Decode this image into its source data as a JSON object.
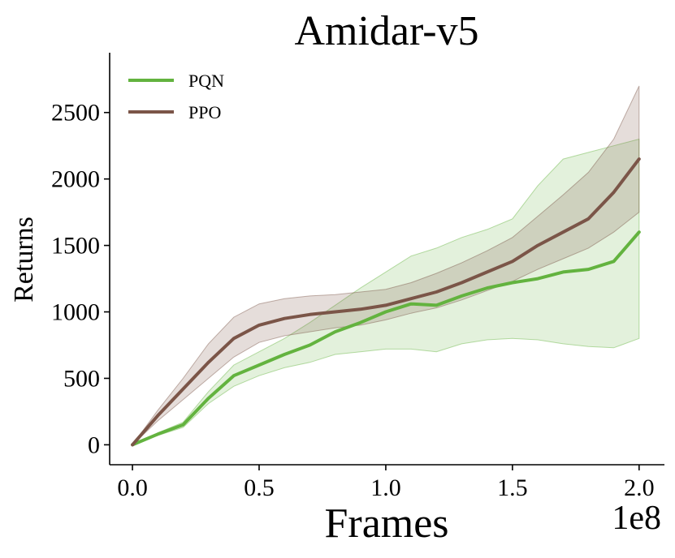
{
  "colors": {
    "pqn": "#63b33f",
    "ppo": "#7b5548"
  },
  "chart_data": {
    "type": "line",
    "title": "Amidar-v5",
    "xlabel": "Frames",
    "ylabel": "Returns",
    "x_multiplier_label": "1e8",
    "xlim": [
      -0.09,
      2.1
    ],
    "ylim": [
      -150,
      2950
    ],
    "xticks": [
      0.0,
      0.5,
      1.0,
      1.5,
      2.0
    ],
    "xtick_labels": [
      "0.0",
      "0.5",
      "1.0",
      "1.5",
      "2.0"
    ],
    "yticks": [
      0,
      500,
      1000,
      1500,
      2000,
      2500
    ],
    "ytick_labels": [
      "0",
      "500",
      "1000",
      "1500",
      "2000",
      "2500"
    ],
    "grid": false,
    "legend_position": "top-left",
    "series": [
      {
        "name": "PQN",
        "color": "#63b33f",
        "x": [
          0.0,
          0.1,
          0.2,
          0.3,
          0.4,
          0.5,
          0.6,
          0.7,
          0.8,
          0.9,
          1.0,
          1.1,
          1.2,
          1.3,
          1.4,
          1.5,
          1.6,
          1.7,
          1.8,
          1.9,
          2.0
        ],
        "mean": [
          0,
          80,
          150,
          350,
          520,
          600,
          680,
          750,
          850,
          920,
          1000,
          1060,
          1050,
          1120,
          1180,
          1220,
          1250,
          1300,
          1320,
          1380,
          1600
        ],
        "lower": [
          0,
          70,
          130,
          310,
          440,
          520,
          580,
          620,
          680,
          700,
          720,
          720,
          700,
          760,
          790,
          800,
          790,
          760,
          740,
          730,
          800
        ],
        "upper": [
          0,
          90,
          170,
          400,
          600,
          700,
          800,
          920,
          1050,
          1180,
          1300,
          1420,
          1480,
          1560,
          1620,
          1700,
          1950,
          2150,
          2200,
          2250,
          2300
        ]
      },
      {
        "name": "PPO",
        "color": "#7b5548",
        "x": [
          0.0,
          0.1,
          0.2,
          0.3,
          0.4,
          0.5,
          0.6,
          0.7,
          0.8,
          0.9,
          1.0,
          1.1,
          1.2,
          1.3,
          1.4,
          1.5,
          1.6,
          1.7,
          1.8,
          1.9,
          2.0
        ],
        "mean": [
          0,
          220,
          420,
          620,
          800,
          900,
          950,
          980,
          1000,
          1020,
          1050,
          1100,
          1150,
          1220,
          1300,
          1380,
          1500,
          1600,
          1700,
          1900,
          2150
        ],
        "lower": [
          0,
          180,
          340,
          500,
          660,
          770,
          820,
          850,
          880,
          900,
          940,
          990,
          1030,
          1090,
          1160,
          1230,
          1320,
          1400,
          1480,
          1600,
          1750
        ],
        "upper": [
          0,
          260,
          500,
          760,
          960,
          1060,
          1100,
          1120,
          1130,
          1150,
          1170,
          1220,
          1290,
          1370,
          1460,
          1560,
          1720,
          1880,
          2050,
          2300,
          2700
        ]
      }
    ]
  }
}
